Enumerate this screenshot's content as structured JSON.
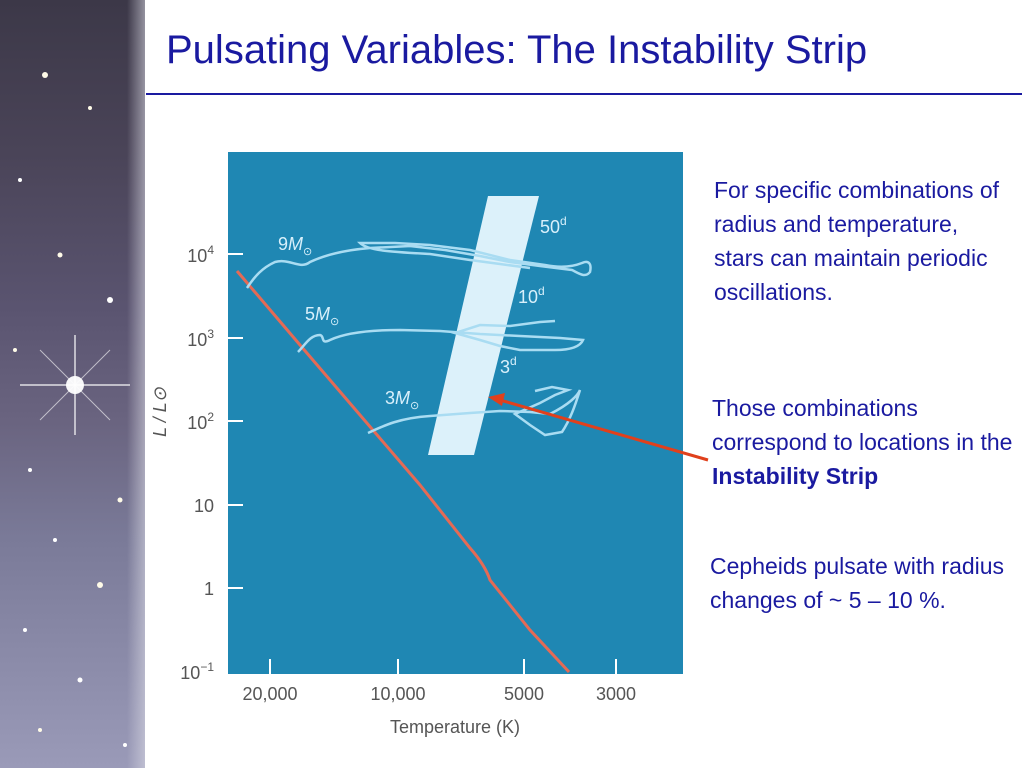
{
  "slide": {
    "title": "Pulsating Variables: The Instability Strip"
  },
  "diagram": {
    "y_axis_label": "L / L⊙",
    "x_axis_label": "Temperature (K)",
    "y_ticks": [
      {
        "base": "10",
        "exp": "4"
      },
      {
        "base": "10",
        "exp": "3"
      },
      {
        "base": "10",
        "exp": "2"
      },
      {
        "base": "10",
        "exp": ""
      },
      {
        "base": "1",
        "exp": ""
      },
      {
        "base": "10",
        "exp": "−1"
      }
    ],
    "x_ticks": [
      "20,000",
      "10,000",
      "5000",
      "3000"
    ],
    "tracks": [
      {
        "mass": "9",
        "symbol": "M",
        "sub": "⊙"
      },
      {
        "mass": "5",
        "symbol": "M",
        "sub": "⊙"
      },
      {
        "mass": "3",
        "symbol": "M",
        "sub": "⊙"
      }
    ],
    "periods": [
      {
        "value": "50",
        "unit": "d"
      },
      {
        "value": "10",
        "unit": "d"
      },
      {
        "value": "3",
        "unit": "d"
      }
    ],
    "colors": {
      "panel": "#1f87b3",
      "strip": "#dcf1fa",
      "tracks": "#a9dcf2",
      "main_sequence": "#e56a55",
      "axis": "#ffffff",
      "arrow": "#e0401c",
      "text": "#1a1aa0"
    }
  },
  "text": {
    "para1": "For specific combinations of radius and temperature, stars can maintain periodic oscillations.",
    "para2_pre": "Those combinations correspond to locations in the ",
    "para2_bold": "Instability Strip",
    "para3": "Cepheids pulsate with radius changes of ~ 5 – 10 %."
  }
}
